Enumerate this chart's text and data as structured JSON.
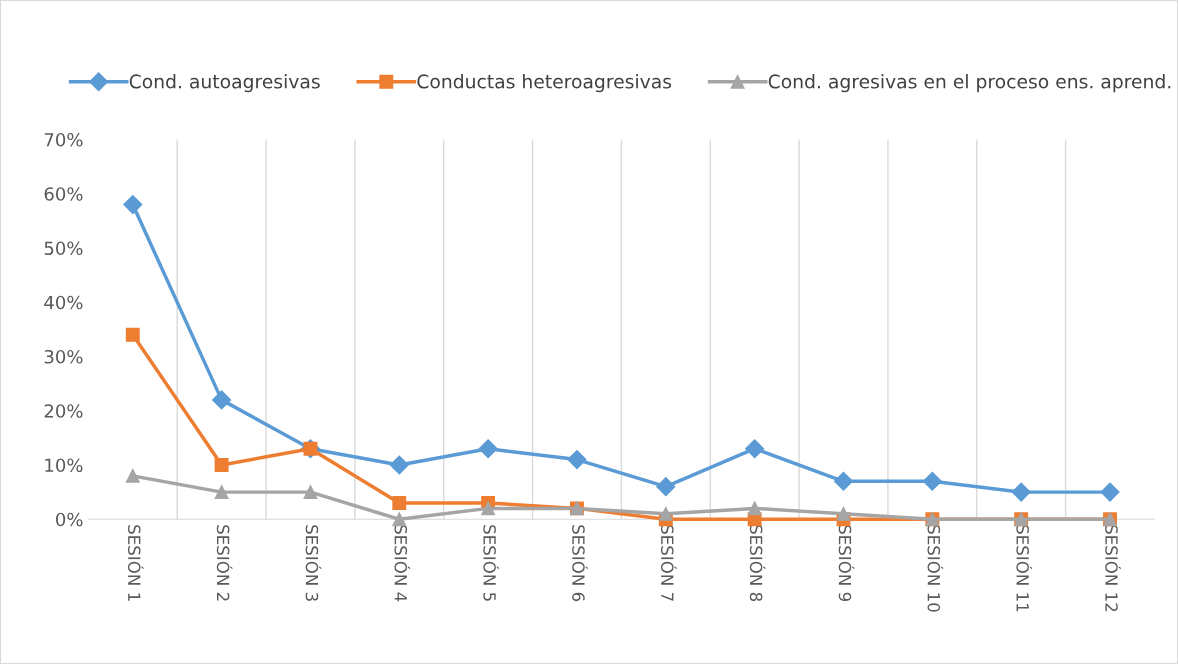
{
  "chart_data": {
    "type": "line",
    "categories": [
      "SESIÓN 1",
      "SESIÓN 2",
      "SESIÓN 3",
      "SESIÓN 4",
      "SESIÓN 5",
      "SESIÓN 6",
      "SESIÓN 7",
      "SESIÓN 8",
      "SESIÓN 9",
      "SESIÓN 10",
      "SESIÓN 11",
      "SESIÓN 12"
    ],
    "series": [
      {
        "name": "Cond. autoagresivas",
        "color": "#5b9bd5",
        "marker": "diamond",
        "values": [
          58,
          22,
          13,
          10,
          13,
          11,
          6,
          13,
          7,
          7,
          5,
          5
        ]
      },
      {
        "name": "Conductas heteroagresivas",
        "color": "#ed7d31",
        "marker": "square",
        "values": [
          34,
          10,
          13,
          3,
          3,
          2,
          0,
          0,
          0,
          0,
          0,
          0
        ]
      },
      {
        "name": "Cond. agresivas en el proceso ens. aprend.",
        "color": "#a5a5a5",
        "marker": "triangle",
        "values": [
          8,
          5,
          5,
          0,
          2,
          2,
          1,
          2,
          1,
          0,
          0,
          0
        ]
      }
    ],
    "ylim": [
      0,
      70
    ],
    "yticks": [
      {
        "value": 0,
        "label": "0%"
      },
      {
        "value": 10,
        "label": "10%"
      },
      {
        "value": 20,
        "label": "20%"
      },
      {
        "value": 30,
        "label": "30%"
      },
      {
        "value": 40,
        "label": "40%"
      },
      {
        "value": 50,
        "label": "50%"
      },
      {
        "value": 60,
        "label": "60%"
      },
      {
        "value": 70,
        "label": "70%"
      }
    ],
    "grid": "x",
    "legend": "top",
    "line_style": "solid"
  }
}
